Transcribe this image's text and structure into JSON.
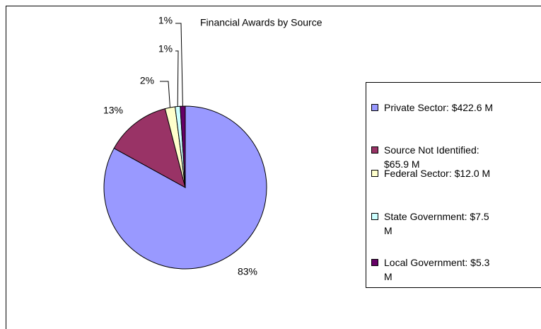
{
  "chart_data": {
    "type": "pie",
    "title": "Financial Awards by Source",
    "categories": [
      "Private Sector: $422.6 M",
      "Source Not Identified: $65.9 M",
      "Federal Sector: $12.0 M",
      "State Government: $7.5 M",
      "Local Government: $5.3 M"
    ],
    "values": [
      83,
      13,
      2,
      1,
      1
    ],
    "value_labels": [
      "83%",
      "13%",
      "2%",
      "1%",
      "1%"
    ],
    "colors": [
      "#9999ff",
      "#993366",
      "#ffffcc",
      "#ccffff",
      "#660066"
    ],
    "legend": "right"
  }
}
